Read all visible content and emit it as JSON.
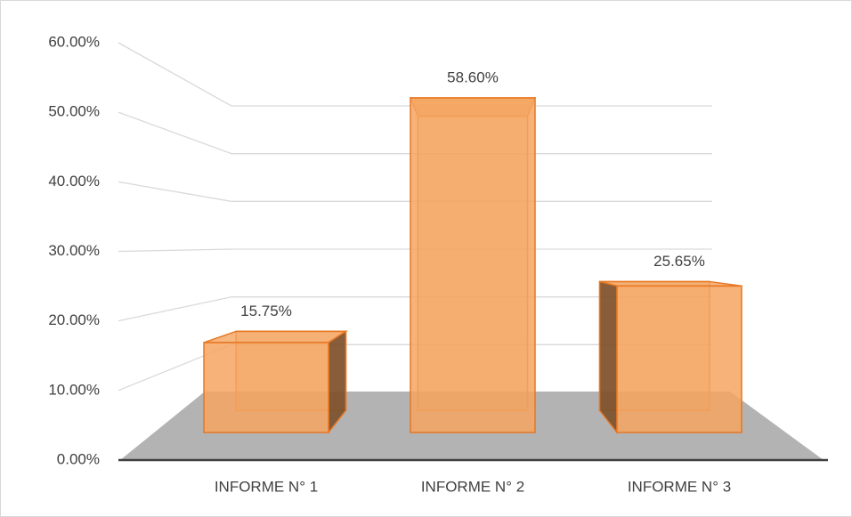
{
  "chart_data": {
    "type": "bar3d",
    "categories": [
      "INFORME N° 1",
      "INFORME N° 2",
      "INFORME N° 3"
    ],
    "values": [
      15.75,
      58.6,
      25.65
    ],
    "value_labels": [
      "15.75%",
      "58.60%",
      "25.65%"
    ],
    "color": "#f4a460",
    "ylim": [
      0,
      60
    ],
    "yticks": [
      {
        "value": 0,
        "label": "0.00%"
      },
      {
        "value": 10,
        "label": "10.00%"
      },
      {
        "value": 20,
        "label": "20.00%"
      },
      {
        "value": 30,
        "label": "30.00%"
      },
      {
        "value": 40,
        "label": "40.00%"
      },
      {
        "value": 50,
        "label": "50.00%"
      },
      {
        "value": 60,
        "label": "60.00%"
      }
    ],
    "grid": true
  }
}
